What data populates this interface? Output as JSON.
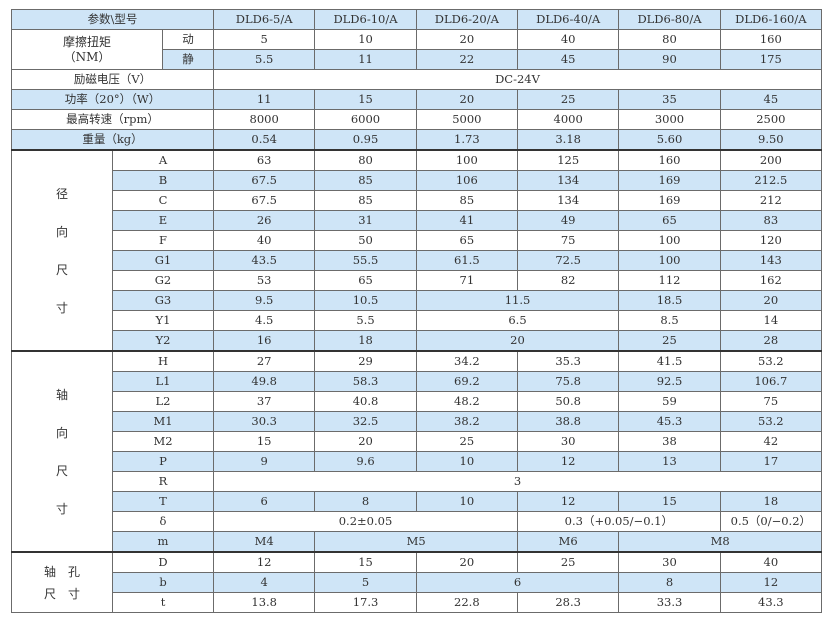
{
  "colors": {
    "shade": "#cfe5f7",
    "grid": "#6b6b6b"
  },
  "header": {
    "label": "参数\\型号",
    "models": [
      "DLD6-5/A",
      "DLD6-10/A",
      "DLD6-20/A",
      "DLD6-40/A",
      "DLD6-80/A",
      "DLD6-160/A"
    ]
  },
  "torque": {
    "label": "摩擦扭矩",
    "unit": "（NM）",
    "rows": [
      {
        "label": "动",
        "cells": [
          {
            "v": "5"
          },
          {
            "v": "10"
          },
          {
            "v": "20"
          },
          {
            "v": "40"
          },
          {
            "v": "80"
          },
          {
            "v": "160"
          }
        ]
      },
      {
        "label": "静",
        "cells": [
          {
            "v": "5.5"
          },
          {
            "v": "11"
          },
          {
            "v": "22"
          },
          {
            "v": "45"
          },
          {
            "v": "90"
          },
          {
            "v": "175"
          }
        ]
      }
    ]
  },
  "general": [
    {
      "label": "励磁电压（V）",
      "cells": [
        {
          "v": "DC-24V",
          "span": 6
        }
      ]
    },
    {
      "label": "功率（20°）（W）",
      "cells": [
        {
          "v": "11"
        },
        {
          "v": "15"
        },
        {
          "v": "20"
        },
        {
          "v": "25"
        },
        {
          "v": "35"
        },
        {
          "v": "45"
        }
      ]
    },
    {
      "label": "最高转速（rpm）",
      "cells": [
        {
          "v": "8000"
        },
        {
          "v": "6000"
        },
        {
          "v": "5000"
        },
        {
          "v": "4000"
        },
        {
          "v": "3000"
        },
        {
          "v": "2500"
        }
      ]
    },
    {
      "label": "重量（kg）",
      "cells": [
        {
          "v": "0.54"
        },
        {
          "v": "0.95"
        },
        {
          "v": "1.73"
        },
        {
          "v": "3.18"
        },
        {
          "v": "5.60"
        },
        {
          "v": "9.50"
        }
      ]
    }
  ],
  "groups": [
    {
      "label": [
        "径",
        "向",
        "尺",
        "寸"
      ],
      "rows": [
        {
          "label": "A",
          "cells": [
            {
              "v": "63"
            },
            {
              "v": "80"
            },
            {
              "v": "100"
            },
            {
              "v": "125"
            },
            {
              "v": "160"
            },
            {
              "v": "200"
            }
          ]
        },
        {
          "label": "B",
          "cells": [
            {
              "v": "67.5"
            },
            {
              "v": "85"
            },
            {
              "v": "106"
            },
            {
              "v": "134"
            },
            {
              "v": "169"
            },
            {
              "v": "212.5"
            }
          ]
        },
        {
          "label": "C",
          "cells": [
            {
              "v": "67.5"
            },
            {
              "v": "85"
            },
            {
              "v": "85"
            },
            {
              "v": "134"
            },
            {
              "v": "169"
            },
            {
              "v": "212"
            }
          ]
        },
        {
          "label": "E",
          "cells": [
            {
              "v": "26"
            },
            {
              "v": "31"
            },
            {
              "v": "41"
            },
            {
              "v": "49"
            },
            {
              "v": "65"
            },
            {
              "v": "83"
            }
          ]
        },
        {
          "label": "F",
          "cells": [
            {
              "v": "40"
            },
            {
              "v": "50"
            },
            {
              "v": "65"
            },
            {
              "v": "75"
            },
            {
              "v": "100"
            },
            {
              "v": "120"
            }
          ]
        },
        {
          "label": "G1",
          "cells": [
            {
              "v": "43.5"
            },
            {
              "v": "55.5"
            },
            {
              "v": "61.5"
            },
            {
              "v": "72.5"
            },
            {
              "v": "100"
            },
            {
              "v": "143"
            }
          ]
        },
        {
          "label": "G2",
          "cells": [
            {
              "v": "53"
            },
            {
              "v": "65"
            },
            {
              "v": "71"
            },
            {
              "v": "82"
            },
            {
              "v": "112"
            },
            {
              "v": "162"
            }
          ]
        },
        {
          "label": "G3",
          "cells": [
            {
              "v": "9.5"
            },
            {
              "v": "10.5"
            },
            {
              "v": "11.5",
              "span": 2
            },
            {
              "v": "18.5"
            },
            {
              "v": "20"
            }
          ]
        },
        {
          "label": "Y1",
          "cells": [
            {
              "v": "4.5"
            },
            {
              "v": "5.5"
            },
            {
              "v": "6.5",
              "span": 2
            },
            {
              "v": "8.5"
            },
            {
              "v": "14"
            }
          ]
        },
        {
          "label": "Y2",
          "cells": [
            {
              "v": "16"
            },
            {
              "v": "18"
            },
            {
              "v": "20",
              "span": 2
            },
            {
              "v": "25"
            },
            {
              "v": "28"
            }
          ]
        }
      ]
    },
    {
      "label": [
        "轴",
        "向",
        "尺",
        "寸"
      ],
      "rows": [
        {
          "label": "H",
          "cells": [
            {
              "v": "27"
            },
            {
              "v": "29"
            },
            {
              "v": "34.2"
            },
            {
              "v": "35.3"
            },
            {
              "v": "41.5"
            },
            {
              "v": "53.2"
            }
          ]
        },
        {
          "label": "L1",
          "cells": [
            {
              "v": "49.8"
            },
            {
              "v": "58.3"
            },
            {
              "v": "69.2"
            },
            {
              "v": "75.8"
            },
            {
              "v": "92.5"
            },
            {
              "v": "106.7"
            }
          ]
        },
        {
          "label": "L2",
          "cells": [
            {
              "v": "37"
            },
            {
              "v": "40.8"
            },
            {
              "v": "48.2"
            },
            {
              "v": "50.8"
            },
            {
              "v": "59"
            },
            {
              "v": "75"
            }
          ]
        },
        {
          "label": "M1",
          "cells": [
            {
              "v": "30.3"
            },
            {
              "v": "32.5"
            },
            {
              "v": "38.2"
            },
            {
              "v": "38.8"
            },
            {
              "v": "45.3"
            },
            {
              "v": "53.2"
            }
          ]
        },
        {
          "label": "M2",
          "cells": [
            {
              "v": "15"
            },
            {
              "v": "20"
            },
            {
              "v": "25"
            },
            {
              "v": "30"
            },
            {
              "v": "38"
            },
            {
              "v": "42"
            }
          ]
        },
        {
          "label": "P",
          "cells": [
            {
              "v": "9"
            },
            {
              "v": "9.6"
            },
            {
              "v": "10"
            },
            {
              "v": "12"
            },
            {
              "v": "13"
            },
            {
              "v": "17"
            }
          ]
        },
        {
          "label": "R",
          "cells": [
            {
              "v": "3",
              "span": 6
            }
          ]
        },
        {
          "label": "T",
          "cells": [
            {
              "v": "6"
            },
            {
              "v": "8"
            },
            {
              "v": "10"
            },
            {
              "v": "12"
            },
            {
              "v": "15"
            },
            {
              "v": "18"
            }
          ]
        },
        {
          "label": "δ",
          "cells": [
            {
              "v": "0.2±0.05",
              "span": 3
            },
            {
              "v": "0.3（+0.05/−0.1）",
              "span": 2
            },
            {
              "v": "0.5（0/−0.2）"
            }
          ]
        },
        {
          "label": "m",
          "cells": [
            {
              "v": "M4"
            },
            {
              "v": "M5",
              "span": 2
            },
            {
              "v": "M6"
            },
            {
              "v": "M8",
              "span": 2
            }
          ]
        }
      ]
    },
    {
      "label": [
        "轴　孔",
        "尺　寸"
      ],
      "rows": [
        {
          "label": "D",
          "cells": [
            {
              "v": "12"
            },
            {
              "v": "15"
            },
            {
              "v": "20"
            },
            {
              "v": "25"
            },
            {
              "v": "30"
            },
            {
              "v": "40"
            }
          ]
        },
        {
          "label": "b",
          "cells": [
            {
              "v": "4"
            },
            {
              "v": "5"
            },
            {
              "v": "6",
              "span": 2
            },
            {
              "v": "8"
            },
            {
              "v": "12"
            }
          ]
        },
        {
          "label": "t",
          "cells": [
            {
              "v": "13.8"
            },
            {
              "v": "17.3"
            },
            {
              "v": "22.8"
            },
            {
              "v": "28.3"
            },
            {
              "v": "33.3"
            },
            {
              "v": "43.3"
            }
          ]
        }
      ]
    }
  ]
}
